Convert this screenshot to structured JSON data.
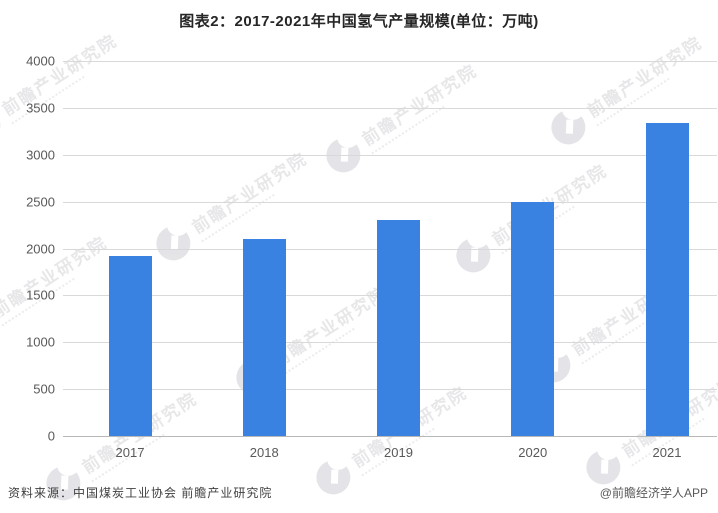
{
  "title": "图表2：2017-2021年中国氢气产量规模(单位：万吨)",
  "source_note": "资料来源：中国煤炭工业协会 前瞻产业研究院",
  "credit": "@前瞻经济学人APP",
  "watermark": {
    "text": "前瞻产业研究院",
    "logo": "qianzhan-logo"
  },
  "colors": {
    "bar": "#3A82E2",
    "gridline": "#D9D9D9",
    "axis_line": "#B8B8B8",
    "axis_label": "#595959",
    "title_text": "#262626",
    "watermark_text": "#D4D4DA"
  },
  "chart_data": {
    "type": "bar",
    "title": "图表2：2017-2021年中国氢气产量规模(单位：万吨)",
    "unit": "万吨",
    "categories": [
      "2017",
      "2018",
      "2019",
      "2020",
      "2021"
    ],
    "values": [
      1915,
      2100,
      2300,
      2500,
      3342
    ],
    "xlabel": "",
    "ylabel": "",
    "ylim": [
      0,
      4000
    ],
    "yticks": [
      0,
      500,
      1000,
      1500,
      2000,
      2500,
      3000,
      3500,
      4000
    ],
    "grid": true,
    "legend": false,
    "source": "资料来源：中国煤炭工业协会 前瞻产业研究院"
  }
}
